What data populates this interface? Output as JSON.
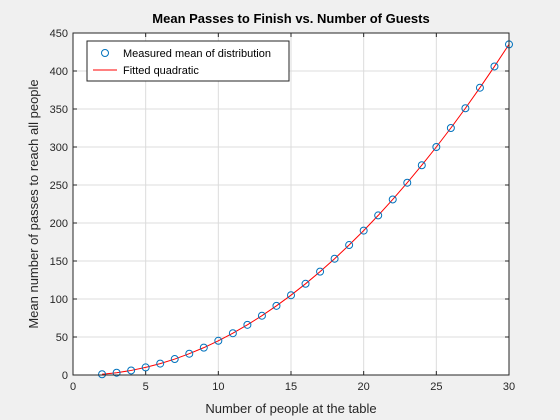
{
  "chart_data": {
    "type": "scatter",
    "title": "Mean Passes to Finish vs. Number of Guests",
    "xlabel": "Number of people at the table",
    "ylabel": "Mean number of passes to reach all people",
    "xlim": [
      0,
      30
    ],
    "ylim": [
      0,
      450
    ],
    "xticks": [
      0,
      5,
      10,
      15,
      20,
      25,
      30
    ],
    "yticks": [
      0,
      50,
      100,
      150,
      200,
      250,
      300,
      350,
      400,
      450
    ],
    "grid": true,
    "legend_location": "top-left",
    "series": [
      {
        "name": "Measured mean of distribution",
        "kind": "markers",
        "marker": "circle",
        "color": "#0072BD",
        "x": [
          2,
          3,
          4,
          5,
          6,
          7,
          8,
          9,
          10,
          11,
          12,
          13,
          14,
          15,
          16,
          17,
          18,
          19,
          20,
          21,
          22,
          23,
          24,
          25,
          26,
          27,
          28,
          29,
          30
        ],
        "y": [
          1,
          3,
          6,
          10,
          15,
          21,
          28,
          36,
          45,
          55,
          66,
          78,
          91,
          105,
          120,
          136,
          153,
          171,
          190,
          210,
          231,
          253,
          276,
          300,
          325,
          351,
          378,
          406,
          435
        ]
      },
      {
        "name": "Fitted quadratic",
        "kind": "line",
        "color": "#FF0000",
        "x": [
          2,
          3,
          4,
          5,
          6,
          7,
          8,
          9,
          10,
          11,
          12,
          13,
          14,
          15,
          16,
          17,
          18,
          19,
          20,
          21,
          22,
          23,
          24,
          25,
          26,
          27,
          28,
          29,
          30
        ],
        "y": [
          1,
          3,
          6,
          10,
          15,
          21,
          28,
          36,
          45,
          55,
          66,
          78,
          91,
          105,
          120,
          136,
          153,
          171,
          190,
          210,
          231,
          253,
          276,
          300,
          325,
          351,
          378,
          406,
          435
        ]
      }
    ]
  }
}
